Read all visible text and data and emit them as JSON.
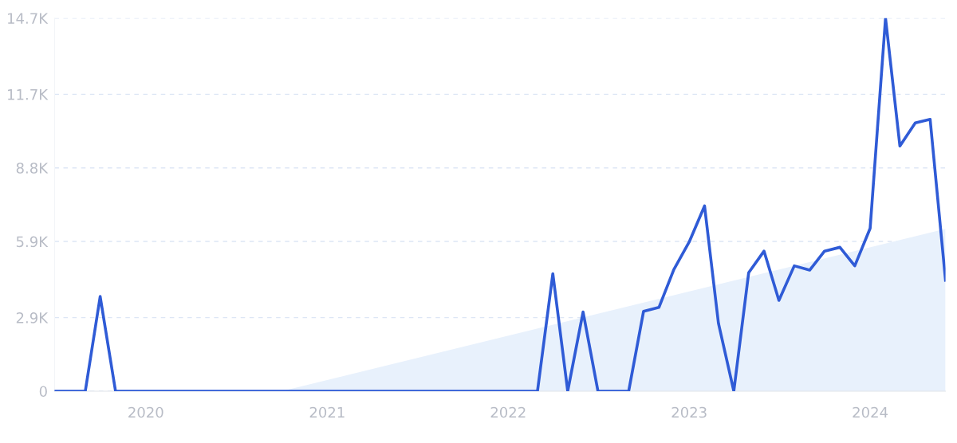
{
  "chart_data": {
    "type": "line",
    "x": [
      "2019-07",
      "2019-08",
      "2019-09",
      "2019-10",
      "2019-11",
      "2019-12",
      "2020-01",
      "2020-02",
      "2020-03",
      "2020-04",
      "2020-05",
      "2020-06",
      "2020-07",
      "2020-08",
      "2020-09",
      "2020-10",
      "2020-11",
      "2020-12",
      "2021-01",
      "2021-02",
      "2021-03",
      "2021-04",
      "2021-05",
      "2021-06",
      "2021-07",
      "2021-08",
      "2021-09",
      "2021-10",
      "2021-11",
      "2021-12",
      "2022-01",
      "2022-02",
      "2022-03",
      "2022-04",
      "2022-05",
      "2022-06",
      "2022-07",
      "2022-08",
      "2022-09",
      "2022-10",
      "2022-11",
      "2022-12",
      "2023-01",
      "2023-02",
      "2023-03",
      "2023-04",
      "2023-05",
      "2023-06",
      "2023-07",
      "2023-08",
      "2023-09",
      "2023-10",
      "2023-11",
      "2023-12",
      "2024-01",
      "2024-02",
      "2024-03",
      "2024-04",
      "2024-05",
      "2024-06"
    ],
    "series": [
      {
        "type": "area",
        "color": "#e8f1fc",
        "x": [
          "2020-10",
          "2024-06"
        ],
        "values": [
          0,
          6400
        ]
      },
      {
        "color": "#2f5bd6",
        "values": [
          0,
          0,
          0,
          3730,
          0,
          0,
          0,
          0,
          0,
          0,
          0,
          0,
          0,
          0,
          0,
          0,
          0,
          0,
          0,
          0,
          0,
          0,
          0,
          0,
          0,
          0,
          0,
          0,
          0,
          0,
          0,
          0,
          0,
          4630,
          0,
          3120,
          0,
          0,
          0,
          3150,
          3300,
          4790,
          5880,
          7300,
          2680,
          0,
          4670,
          5520,
          3580,
          4940,
          4770,
          5520,
          5670,
          4940,
          6420,
          14700,
          9660,
          10570,
          10710,
          4370
        ]
      }
    ],
    "xlim": [
      "2019-07",
      "2024-06"
    ],
    "xticks": [
      {
        "value": "2020-01",
        "label": "2020"
      },
      {
        "value": "2021-01",
        "label": "2021"
      },
      {
        "value": "2022-01",
        "label": "2022"
      },
      {
        "value": "2023-01",
        "label": "2023"
      },
      {
        "value": "2024-01",
        "label": "2024"
      }
    ],
    "ylim": [
      0,
      14700
    ],
    "yticks": [
      0,
      {
        "value": 2900,
        "label": "2.9K"
      },
      {
        "value": 5900,
        "label": "5.9K"
      },
      {
        "value": 8800,
        "label": "8.8K"
      },
      {
        "value": 11700,
        "label": "11.7K"
      },
      {
        "value": 14700,
        "label": "14.7K"
      }
    ],
    "grid": "y",
    "line_style": "solid",
    "legend": false
  }
}
